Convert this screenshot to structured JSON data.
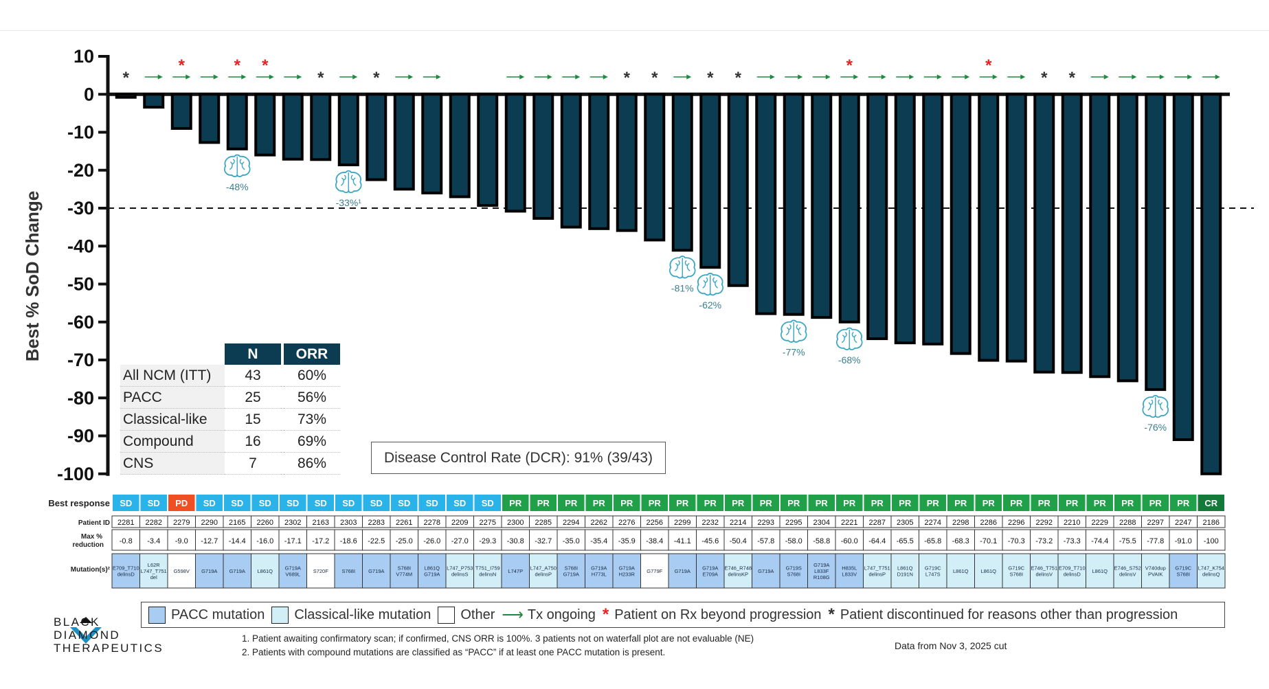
{
  "chart_data": {
    "type": "bar",
    "ylabel": "Best % SoD Change",
    "ylim": [
      -100,
      10
    ],
    "yticks": [
      10,
      0,
      -10,
      -20,
      -30,
      -40,
      -50,
      -60,
      -70,
      -80,
      -90,
      -100
    ],
    "threshold": -30,
    "patients": [
      "2281",
      "2282",
      "2279",
      "2290",
      "2165",
      "2260",
      "2302",
      "2163",
      "2303",
      "2283",
      "2261",
      "2278",
      "2209",
      "2275",
      "2300",
      "2285",
      "2294",
      "2262",
      "2276",
      "2256",
      "2299",
      "2232",
      "2214",
      "2293",
      "2295",
      "2304",
      "2221",
      "2287",
      "2305",
      "2274",
      "2298",
      "2286",
      "2296",
      "2292",
      "2210",
      "2229",
      "2288",
      "2297",
      "2247",
      "2186"
    ],
    "values": [
      -0.8,
      -3.4,
      -9.0,
      -12.7,
      -14.4,
      -16.0,
      -17.1,
      -17.2,
      -18.6,
      -22.5,
      -25.0,
      -26.0,
      -27.0,
      -29.3,
      -30.8,
      -32.7,
      -35.0,
      -35.4,
      -35.9,
      -38.4,
      -41.1,
      -45.6,
      -50.4,
      -57.8,
      -58.0,
      -58.8,
      -60.0,
      -64.4,
      -65.5,
      -65.8,
      -68.3,
      -70.1,
      -70.3,
      -73.2,
      -73.3,
      -74.4,
      -75.5,
      -77.8,
      -91.0,
      -100
    ],
    "max_reduction_labels": [
      "-0.8",
      "-3.4",
      "-9.0",
      "-12.7",
      "-14.4",
      "-16.0",
      "-17.1",
      "-17.2",
      "-18.6",
      "-22.5",
      "-25.0",
      "-26.0",
      "-27.0",
      "-29.3",
      "-30.8",
      "-32.7",
      "-35.0",
      "-35.4",
      "-35.9",
      "-38.4",
      "-41.1",
      "-45.6",
      "-50.4",
      "-57.8",
      "-58.0",
      "-58.8",
      "-60.0",
      "-64.4",
      "-65.5",
      "-65.8",
      "-68.3",
      "-70.1",
      "-70.3",
      "-73.2",
      "-73.3",
      "-74.4",
      "-75.5",
      "-77.8",
      "-91.0",
      "-100"
    ],
    "best_response": [
      "SD",
      "SD",
      "PD",
      "SD",
      "SD",
      "SD",
      "SD",
      "SD",
      "SD",
      "SD",
      "SD",
      "SD",
      "SD",
      "SD",
      "PR",
      "PR",
      "PR",
      "PR",
      "PR",
      "PR",
      "PR",
      "PR",
      "PR",
      "PR",
      "PR",
      "PR",
      "PR",
      "PR",
      "PR",
      "PR",
      "PR",
      "PR",
      "PR",
      "PR",
      "PR",
      "PR",
      "PR",
      "PR",
      "PR",
      "CR"
    ],
    "mutations": [
      "E709_T710delinsD",
      "L62R L747_T751del",
      "G598V",
      "G719A",
      "G719A",
      "L861Q",
      "G719A V689L",
      "S720F",
      "S768I",
      "G719A",
      "S768I V774M",
      "L861Q G719A",
      "L747_P753delinsS",
      "T751_I759delinsN",
      "L747P",
      "L747_A750delinsP",
      "S768I G719A",
      "G719A H773L",
      "G719A H233R",
      "G779F",
      "G719A",
      "G719A E709A",
      "E746_R748delinsKP",
      "G719A",
      "G719S S768I",
      "G719A L833F R108G",
      "H835L L833V",
      "L747_T751delinsP",
      "L861Q D191N",
      "G719C L747S",
      "L861Q",
      "L861Q",
      "G719C S768I",
      "E746_T751delinsV",
      "E709_T710delinsD",
      "L861Q",
      "E746_S752delinsV",
      "V740dup PVAIK",
      "G719C S768I",
      "L747_K754delinsQ"
    ],
    "mutation_class": [
      "pacc",
      "classical",
      "other",
      "pacc",
      "pacc",
      "classical",
      "pacc",
      "other",
      "pacc",
      "pacc",
      "pacc",
      "pacc",
      "classical",
      "classical",
      "pacc",
      "classical",
      "pacc",
      "pacc",
      "pacc",
      "other",
      "pacc",
      "pacc",
      "classical",
      "pacc",
      "pacc",
      "pacc",
      "pacc",
      "classical",
      "classical",
      "classical",
      "classical",
      "classical",
      "classical",
      "classical",
      "classical",
      "classical",
      "classical",
      "classical",
      "pacc",
      "classical"
    ],
    "status_markers": [
      "discontinued",
      "ongoing",
      "beyond_progression",
      "ongoing",
      "beyond_progression",
      "beyond_progression",
      "ongoing",
      "discontinued",
      "ongoing",
      "discontinued",
      "ongoing",
      "ongoing",
      "",
      "",
      "ongoing",
      "ongoing",
      "ongoing",
      "ongoing",
      "discontinued",
      "discontinued",
      "ongoing",
      "discontinued",
      "discontinued",
      "ongoing",
      "ongoing",
      "ongoing",
      "beyond_progression",
      "ongoing",
      "ongoing",
      "ongoing",
      "ongoing",
      "beyond_progression",
      "ongoing",
      "discontinued",
      "discontinued",
      "ongoing",
      "ongoing",
      "ongoing",
      "ongoing",
      "ongoing"
    ],
    "cns_annotations": [
      {
        "patient_index": 4,
        "label": "-48%"
      },
      {
        "patient_index": 8,
        "label": "-33%¹"
      },
      {
        "patient_index": 20,
        "label": "-81%"
      },
      {
        "patient_index": 21,
        "label": "-62%"
      },
      {
        "patient_index": 24,
        "label": "-77%"
      },
      {
        "patient_index": 26,
        "label": "-68%"
      },
      {
        "patient_index": 37,
        "label": "-76%"
      }
    ]
  },
  "row_labels": {
    "best_response": "Best response",
    "patient_id": "Patient ID",
    "max_reduction": "Max % reduction",
    "mutations": "Mutation(s)²"
  },
  "colors": {
    "bar": "#0b3c52",
    "SD": "#2ab3e8",
    "PD": "#f04e23",
    "PR": "#21a04a",
    "CR": "#137a3a",
    "pacc": "#a9ccf2",
    "classical": "#d2eff8",
    "other": "#ffffff",
    "ongoing_arrow": "#1e8a3e",
    "beyond_progression": "#e82222",
    "discontinued": "#333333",
    "cns_icon": "#3aa6c4"
  },
  "orr_table": {
    "headers": [
      "N",
      "ORR"
    ],
    "rows": [
      {
        "label": "All NCM (ITT)",
        "n": "43",
        "orr": "60%"
      },
      {
        "label": "PACC",
        "n": "25",
        "orr": "56%"
      },
      {
        "label": "Classical-like",
        "n": "15",
        "orr": "73%"
      },
      {
        "label": "Compound",
        "n": "16",
        "orr": "69%"
      },
      {
        "label": "CNS",
        "n": "7",
        "orr": "86%"
      }
    ]
  },
  "dcr": "Disease Control Rate (DCR): 91% (39/43)",
  "legend": {
    "pacc": "PACC mutation",
    "classical": "Classical-like mutation",
    "other": "Other",
    "ongoing": "Tx ongoing",
    "beyond": "Patient on Rx beyond progression",
    "discontinued": "Patient discontinued for reasons other than progression"
  },
  "logo": {
    "line1": "BLACK",
    "line2": "DIAMOND",
    "line3": "THERAPEUTICS"
  },
  "footnotes": [
    "1. Patient awaiting confirmatory scan; if confirmed, CNS ORR is 100%.  3 patients not on waterfall plot are not evaluable (NE)",
    "2. Patients with compound mutations are classified as “PACC” if at least one PACC mutation is present."
  ],
  "cut_date": "Data from Nov 3, 2025 cut"
}
